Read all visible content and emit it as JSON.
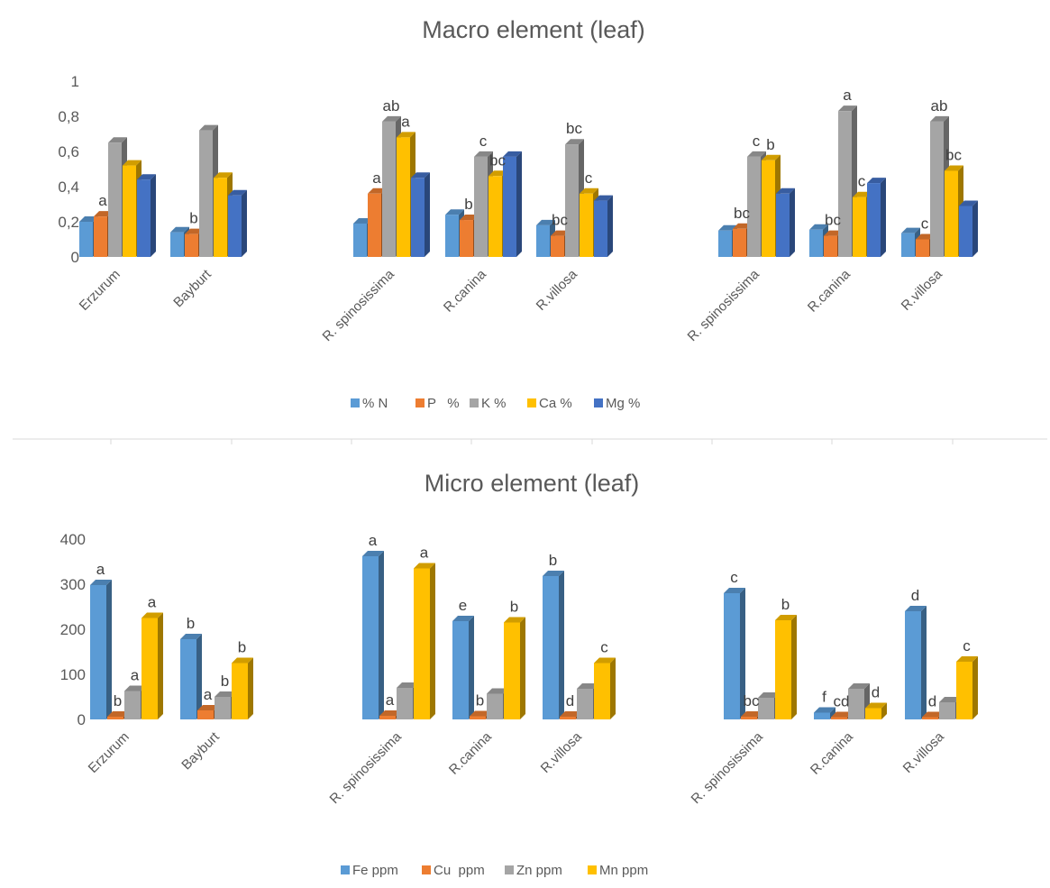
{
  "chart_data": [
    {
      "type": "bar",
      "title": "Macro element (leaf)",
      "categories": [
        "Erzurum",
        "Bayburt",
        "R. spinosissima",
        "R.canina",
        "R.villosa",
        "R. spinosissima",
        "R.canina",
        "R.villosa"
      ],
      "ylim": [
        0,
        1
      ],
      "yticks": [
        "0",
        "0,2",
        "0,4",
        "0,6",
        "0,8",
        "1"
      ],
      "legend_position": "bottom",
      "grid": false,
      "series": [
        {
          "name": "% N",
          "color": "#5B9BD5",
          "values": [
            0.2,
            0.14,
            0.19,
            0.24,
            0.18,
            0.15,
            0.155,
            0.135
          ]
        },
        {
          "name": "P   %",
          "color": "#ED7D31",
          "values": [
            0.23,
            0.13,
            0.36,
            0.21,
            0.12,
            0.16,
            0.12,
            0.1
          ]
        },
        {
          "name": "K %",
          "color": "#A5A5A5",
          "values": [
            0.65,
            0.72,
            0.77,
            0.57,
            0.64,
            0.57,
            0.83,
            0.77
          ]
        },
        {
          "name": "Ca %",
          "color": "#FFC000",
          "values": [
            0.52,
            0.45,
            0.68,
            0.46,
            0.36,
            0.55,
            0.34,
            0.49
          ]
        },
        {
          "name": "Mg %",
          "color": "#4472C4",
          "values": [
            0.44,
            0.35,
            0.45,
            0.57,
            0.32,
            0.36,
            0.42,
            0.29
          ]
        }
      ],
      "annotations": [
        {
          "series": 1,
          "category": 0,
          "text": "a"
        },
        {
          "series": 1,
          "category": 1,
          "text": "b"
        },
        {
          "series": 1,
          "category": 2,
          "text": "a"
        },
        {
          "series": 2,
          "category": 2,
          "text": "ab"
        },
        {
          "series": 3,
          "category": 2,
          "text": "a"
        },
        {
          "series": 1,
          "category": 3,
          "text": "b"
        },
        {
          "series": 2,
          "category": 3,
          "text": "c"
        },
        {
          "series": 3,
          "category": 3,
          "text": "bc"
        },
        {
          "series": 1,
          "category": 4,
          "text": "bc"
        },
        {
          "series": 2,
          "category": 4,
          "text": "bc"
        },
        {
          "series": 3,
          "category": 4,
          "text": "c"
        },
        {
          "series": 1,
          "category": 5,
          "text": "bc"
        },
        {
          "series": 2,
          "category": 5,
          "text": "c"
        },
        {
          "series": 3,
          "category": 5,
          "text": "b"
        },
        {
          "series": 1,
          "category": 6,
          "text": "bc"
        },
        {
          "series": 2,
          "category": 6,
          "text": "a"
        },
        {
          "series": 3,
          "category": 6,
          "text": "c"
        },
        {
          "series": 1,
          "category": 7,
          "text": "c"
        },
        {
          "series": 2,
          "category": 7,
          "text": "ab"
        },
        {
          "series": 3,
          "category": 7,
          "text": "bc"
        }
      ]
    },
    {
      "type": "bar",
      "title": "Micro element (leaf)",
      "categories": [
        "Erzurum",
        "Bayburt",
        "R. spinosissima",
        "R.canina",
        "R.villosa",
        "R. spinosissima",
        "R.canina",
        "R.villosa"
      ],
      "ylim": [
        0,
        400
      ],
      "yticks": [
        "0",
        "100",
        "200",
        "300",
        "400"
      ],
      "legend_position": "bottom",
      "grid": false,
      "series": [
        {
          "name": "Fe ppm",
          "color": "#5B9BD5",
          "values": [
            298,
            178,
            362,
            218,
            318,
            280,
            15,
            240
          ]
        },
        {
          "name": "Cu  ppm",
          "color": "#ED7D31",
          "values": [
            6,
            20,
            8,
            7,
            6,
            6,
            5,
            5
          ]
        },
        {
          "name": "Zn ppm",
          "color": "#A5A5A5",
          "values": [
            63,
            50,
            70,
            57,
            68,
            48,
            68,
            38
          ]
        },
        {
          "name": "Mn ppm",
          "color": "#FFC000",
          "values": [
            225,
            125,
            335,
            215,
            125,
            220,
            25,
            128
          ]
        }
      ],
      "annotations": [
        {
          "series": 0,
          "category": 0,
          "text": "a"
        },
        {
          "series": 1,
          "category": 0,
          "text": "b"
        },
        {
          "series": 2,
          "category": 0,
          "text": "a"
        },
        {
          "series": 3,
          "category": 0,
          "text": "a"
        },
        {
          "series": 0,
          "category": 1,
          "text": "b"
        },
        {
          "series": 1,
          "category": 1,
          "text": "a"
        },
        {
          "series": 2,
          "category": 1,
          "text": "b"
        },
        {
          "series": 3,
          "category": 1,
          "text": "b"
        },
        {
          "series": 0,
          "category": 2,
          "text": "a"
        },
        {
          "series": 1,
          "category": 2,
          "text": "a"
        },
        {
          "series": 3,
          "category": 2,
          "text": "a"
        },
        {
          "series": 0,
          "category": 3,
          "text": "e"
        },
        {
          "series": 1,
          "category": 3,
          "text": "b"
        },
        {
          "series": 3,
          "category": 3,
          "text": "b"
        },
        {
          "series": 0,
          "category": 4,
          "text": "b"
        },
        {
          "series": 1,
          "category": 4,
          "text": "d"
        },
        {
          "series": 3,
          "category": 4,
          "text": "c"
        },
        {
          "series": 0,
          "category": 5,
          "text": "c"
        },
        {
          "series": 1,
          "category": 5,
          "text": "bc"
        },
        {
          "series": 3,
          "category": 5,
          "text": "b"
        },
        {
          "series": 0,
          "category": 6,
          "text": "f"
        },
        {
          "series": 1,
          "category": 6,
          "text": "cd"
        },
        {
          "series": 3,
          "category": 6,
          "text": "d"
        },
        {
          "series": 0,
          "category": 7,
          "text": "d"
        },
        {
          "series": 1,
          "category": 7,
          "text": "d"
        },
        {
          "series": 3,
          "category": 7,
          "text": "c"
        }
      ]
    }
  ]
}
